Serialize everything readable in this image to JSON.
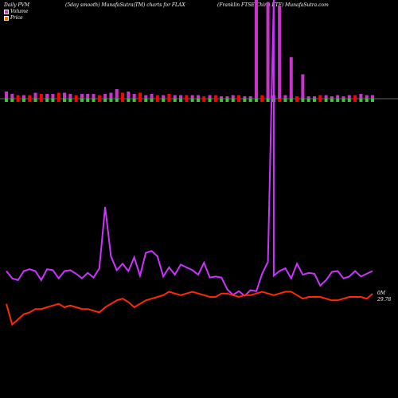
{
  "header": {
    "left": "Daily PVM",
    "middle": "(5day smooth) MunafaSutra(TM) charts for FLAX",
    "right": "(Franklin FTSE China ETF) MunafaSutra.com"
  },
  "legend": {
    "volume_label": "Volume",
    "price_label": "Price",
    "volume_color": "#cc33cc",
    "price_color": "#ff6a00"
  },
  "labels": {
    "volume_level": "0M",
    "price_level": "29.78"
  },
  "colors": {
    "background": "#000000",
    "up_bar": "#cc33cc",
    "down_bar_top": "#ff0000",
    "down_bar_bottom": "#33cc33",
    "price_line": "#ff2a00",
    "volume_line": "#cc33ff",
    "axis": "#888888"
  },
  "chart_data": {
    "type": "bar",
    "n": 64,
    "volume_bars": [
      6,
      4,
      3,
      3,
      3,
      5,
      4,
      4,
      4,
      5,
      5,
      4,
      3,
      4,
      4,
      4,
      3,
      4,
      5,
      8,
      5,
      6,
      4,
      5,
      3,
      4,
      3,
      3,
      4,
      3,
      3,
      3,
      3,
      3,
      2,
      3,
      3,
      2,
      2,
      3,
      3,
      2,
      2,
      3,
      3,
      3,
      3,
      3,
      3,
      3,
      2,
      3,
      2,
      2,
      3,
      3,
      2,
      3,
      2,
      3,
      3,
      4,
      3,
      3
    ],
    "volume_bar_up": [
      true,
      true,
      false,
      true,
      false,
      true,
      false,
      true,
      true,
      false,
      true,
      true,
      false,
      true,
      true,
      true,
      false,
      true,
      true,
      true,
      false,
      true,
      true,
      false,
      true,
      true,
      false,
      true,
      false,
      true,
      true,
      false,
      true,
      true,
      false,
      true,
      false,
      true,
      true,
      true,
      false,
      true,
      true,
      true,
      false,
      true,
      true,
      false,
      true,
      true,
      false,
      true,
      true,
      true,
      false,
      true,
      true,
      true,
      true,
      true,
      false,
      true,
      true,
      true
    ],
    "volume_line": [
      30,
      22,
      20,
      30,
      32,
      30,
      20,
      32,
      31,
      22,
      30,
      31,
      27,
      22,
      28,
      23,
      33,
      100,
      46,
      31,
      38,
      30,
      45,
      25,
      50,
      52,
      46,
      24,
      34,
      26,
      37,
      34,
      31,
      26,
      39,
      23,
      24,
      23,
      10,
      4,
      8,
      3,
      9,
      8,
      27,
      40,
      25,
      30,
      33,
      22,
      38,
      26,
      28,
      27,
      14,
      20,
      29,
      30,
      22,
      24,
      30,
      24,
      27,
      30
    ],
    "price_line": [
      29.2,
      28.0,
      28.3,
      28.6,
      28.7,
      28.9,
      28.9,
      29.0,
      29.1,
      29.2,
      29.0,
      29.1,
      29.0,
      28.9,
      28.9,
      28.8,
      28.7,
      29.0,
      29.2,
      29.4,
      29.5,
      29.3,
      29.0,
      29.2,
      29.4,
      29.5,
      29.6,
      29.7,
      29.9,
      29.8,
      29.7,
      29.8,
      29.9,
      29.8,
      29.7,
      29.6,
      29.6,
      29.8,
      29.8,
      29.7,
      29.6,
      29.7,
      29.7,
      29.8,
      29.9,
      29.8,
      29.7,
      29.8,
      29.9,
      29.9,
      29.7,
      29.5,
      29.6,
      29.6,
      29.6,
      29.5,
      29.4,
      29.4,
      29.5,
      29.6,
      29.6,
      29.6,
      29.5,
      29.78
    ],
    "spikes": [
      {
        "index": 43,
        "value": 140
      },
      {
        "index": 45,
        "value": 135
      },
      {
        "index": 47,
        "value": 130
      },
      {
        "index": 49,
        "value": 58
      },
      {
        "index": 51,
        "value": 34
      }
    ]
  }
}
